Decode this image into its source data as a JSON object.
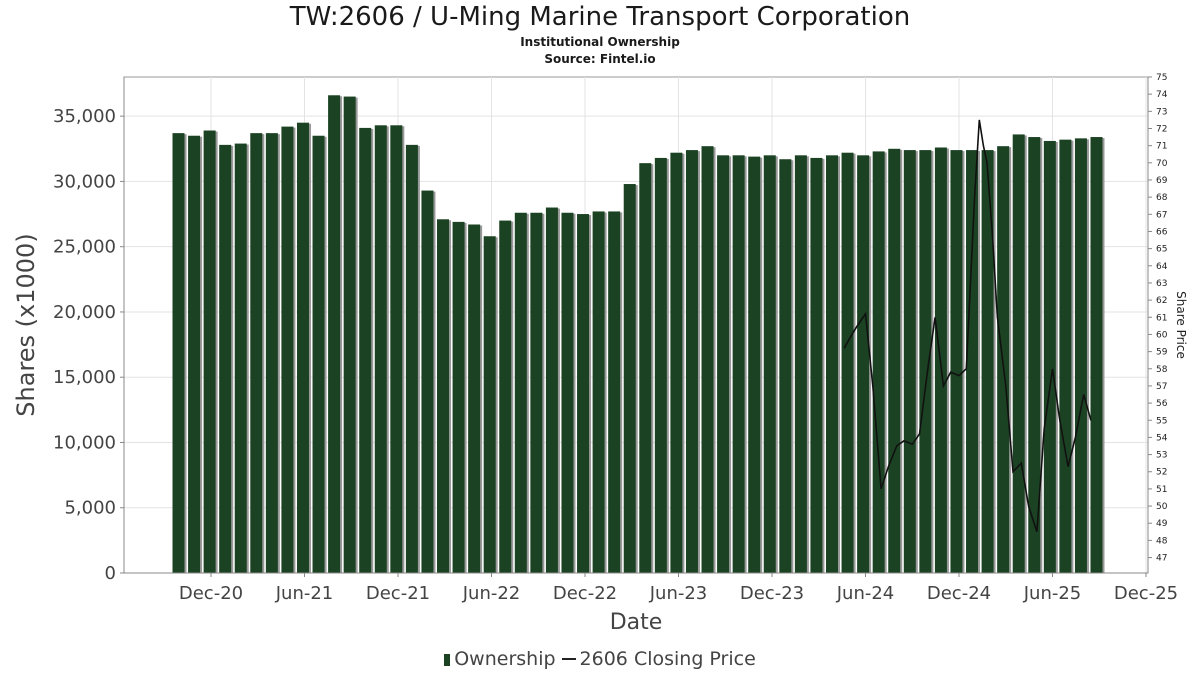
{
  "title": "TW:2606 / U-Ming Marine Transport Corporation",
  "subtitle": "Institutional Ownership",
  "source": "Source: Fintel.io",
  "colors": {
    "bar": "#1b4323",
    "bar_shadow": "#999999",
    "price_line": "#111111",
    "grid": "#e3e3e3"
  },
  "chart_data": {
    "type": "bar",
    "xlabel": "Date",
    "ylabel": "Shares (x1000)",
    "y2label": "Share Price",
    "ylim": [
      0,
      38000
    ],
    "y2lim": [
      46.1,
      75
    ],
    "yticks": [
      0,
      5000,
      10000,
      15000,
      20000,
      25000,
      30000,
      35000
    ],
    "yticklabels": [
      "0",
      "5,000",
      "10,000",
      "15,000",
      "20,000",
      "25,000",
      "30,000",
      "35,000"
    ],
    "y2ticks": [
      47,
      48,
      49,
      50,
      51,
      52,
      53,
      54,
      55,
      56,
      57,
      58,
      59,
      60,
      61,
      62,
      63,
      64,
      65,
      66,
      67,
      68,
      69,
      70,
      71,
      72,
      73,
      74,
      75
    ],
    "xticks": [
      "Dec-20",
      "Jun-21",
      "Dec-21",
      "Jun-22",
      "Dec-22",
      "Jun-23",
      "Dec-23",
      "Jun-24",
      "Dec-24",
      "Jun-25",
      "Dec-25"
    ],
    "grid": true,
    "legend_position": "bottom",
    "series": [
      {
        "name": "Ownership",
        "type": "bar",
        "values": [
          33700,
          33500,
          33900,
          32800,
          32900,
          33700,
          33700,
          34200,
          34500,
          33500,
          36600,
          36500,
          34100,
          34300,
          34300,
          32800,
          29300,
          27100,
          26900,
          26700,
          25800,
          27000,
          27600,
          27600,
          28000,
          27600,
          27500,
          27700,
          27700,
          29800,
          31400,
          31800,
          32200,
          32400,
          32700,
          32000,
          32000,
          31900,
          32000,
          31700,
          32000,
          31800,
          32000,
          32200,
          32000,
          32300,
          32500,
          32400,
          32400,
          32600,
          32400,
          32400,
          32400,
          32700,
          33600,
          33400,
          33100,
          33200,
          33300,
          33400
        ]
      },
      {
        "name": "2606 Closing Price",
        "type": "line",
        "points": [
          [
            "2024-04-20",
            59.2
          ],
          [
            "2024-05-01",
            59.8
          ],
          [
            "2024-05-15",
            60.5
          ],
          [
            "2024-06-01",
            61.2
          ],
          [
            "2024-06-15",
            57.0
          ],
          [
            "2024-07-01",
            51.0
          ],
          [
            "2024-07-15",
            52.3
          ],
          [
            "2024-08-01",
            53.5
          ],
          [
            "2024-08-15",
            53.8
          ],
          [
            "2024-09-01",
            53.6
          ],
          [
            "2024-09-15",
            54.2
          ],
          [
            "2024-10-01",
            58.0
          ],
          [
            "2024-10-15",
            61.0
          ],
          [
            "2024-11-01",
            57.0
          ],
          [
            "2024-11-15",
            57.8
          ],
          [
            "2024-12-01",
            57.6
          ],
          [
            "2024-12-15",
            58.0
          ],
          [
            "2025-01-01",
            68.0
          ],
          [
            "2025-01-10",
            72.5
          ],
          [
            "2025-01-18",
            71.0
          ],
          [
            "2025-01-25",
            70.0
          ],
          [
            "2025-02-05",
            66.0
          ],
          [
            "2025-02-15",
            61.0
          ],
          [
            "2025-03-01",
            57.0
          ],
          [
            "2025-03-15",
            52.0
          ],
          [
            "2025-04-01",
            52.5
          ],
          [
            "2025-04-15",
            50.0
          ],
          [
            "2025-05-01",
            48.5
          ],
          [
            "2025-05-15",
            54.5
          ],
          [
            "2025-06-01",
            58.0
          ],
          [
            "2025-06-15",
            55.0
          ],
          [
            "2025-07-01",
            52.3
          ],
          [
            "2025-07-15",
            54.0
          ],
          [
            "2025-08-01",
            56.5
          ],
          [
            "2025-08-15",
            55.0
          ]
        ]
      }
    ]
  }
}
